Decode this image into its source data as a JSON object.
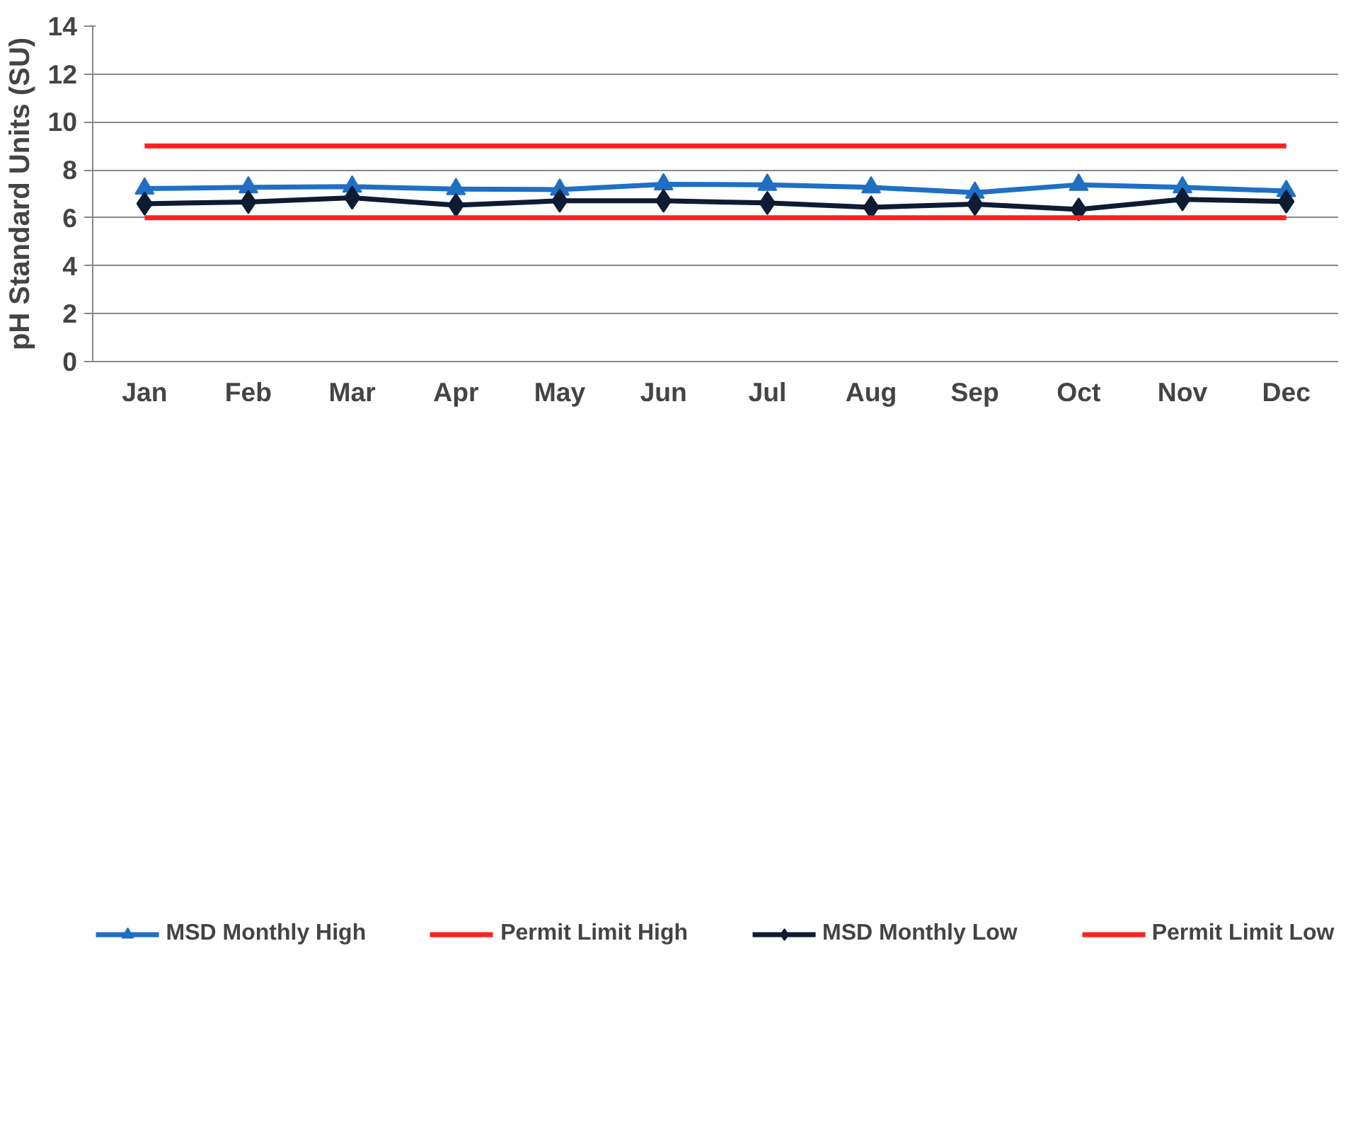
{
  "chart_data": {
    "type": "line",
    "ylabel": "pH Standard Units (SU)",
    "categories": [
      "Jan",
      "Feb",
      "Mar",
      "Apr",
      "May",
      "Jun",
      "Jul",
      "Aug",
      "Sep",
      "Oct",
      "Nov",
      "Dec"
    ],
    "series": [
      {
        "name": "MSD Monthly High",
        "color": "#1f6fc5",
        "marker": "triangle",
        "values": [
          7.22,
          7.27,
          7.3,
          7.2,
          7.18,
          7.4,
          7.38,
          7.27,
          7.05,
          7.38,
          7.27,
          7.12
        ]
      },
      {
        "name": "Permit Limit High",
        "color": "#ff2020",
        "marker": "none",
        "values": [
          9,
          9,
          9,
          9,
          9,
          9,
          9,
          9,
          9,
          9,
          9,
          9
        ]
      },
      {
        "name": "MSD Monthly Low",
        "color": "#0d1b33",
        "marker": "diamond",
        "values": [
          6.59,
          6.66,
          6.84,
          6.53,
          6.71,
          6.71,
          6.62,
          6.44,
          6.57,
          6.35,
          6.77,
          6.68
        ]
      },
      {
        "name": "Permit Limit Low",
        "color": "#ff2020",
        "marker": "none",
        "values": [
          6,
          6,
          6,
          6,
          6,
          6,
          6,
          6,
          6,
          6,
          6,
          6
        ]
      }
    ],
    "ylim": [
      0,
      14
    ],
    "yticks": [
      0,
      2,
      4,
      6,
      8,
      10,
      12,
      14
    ],
    "grid": "y",
    "legend": "bottom"
  }
}
